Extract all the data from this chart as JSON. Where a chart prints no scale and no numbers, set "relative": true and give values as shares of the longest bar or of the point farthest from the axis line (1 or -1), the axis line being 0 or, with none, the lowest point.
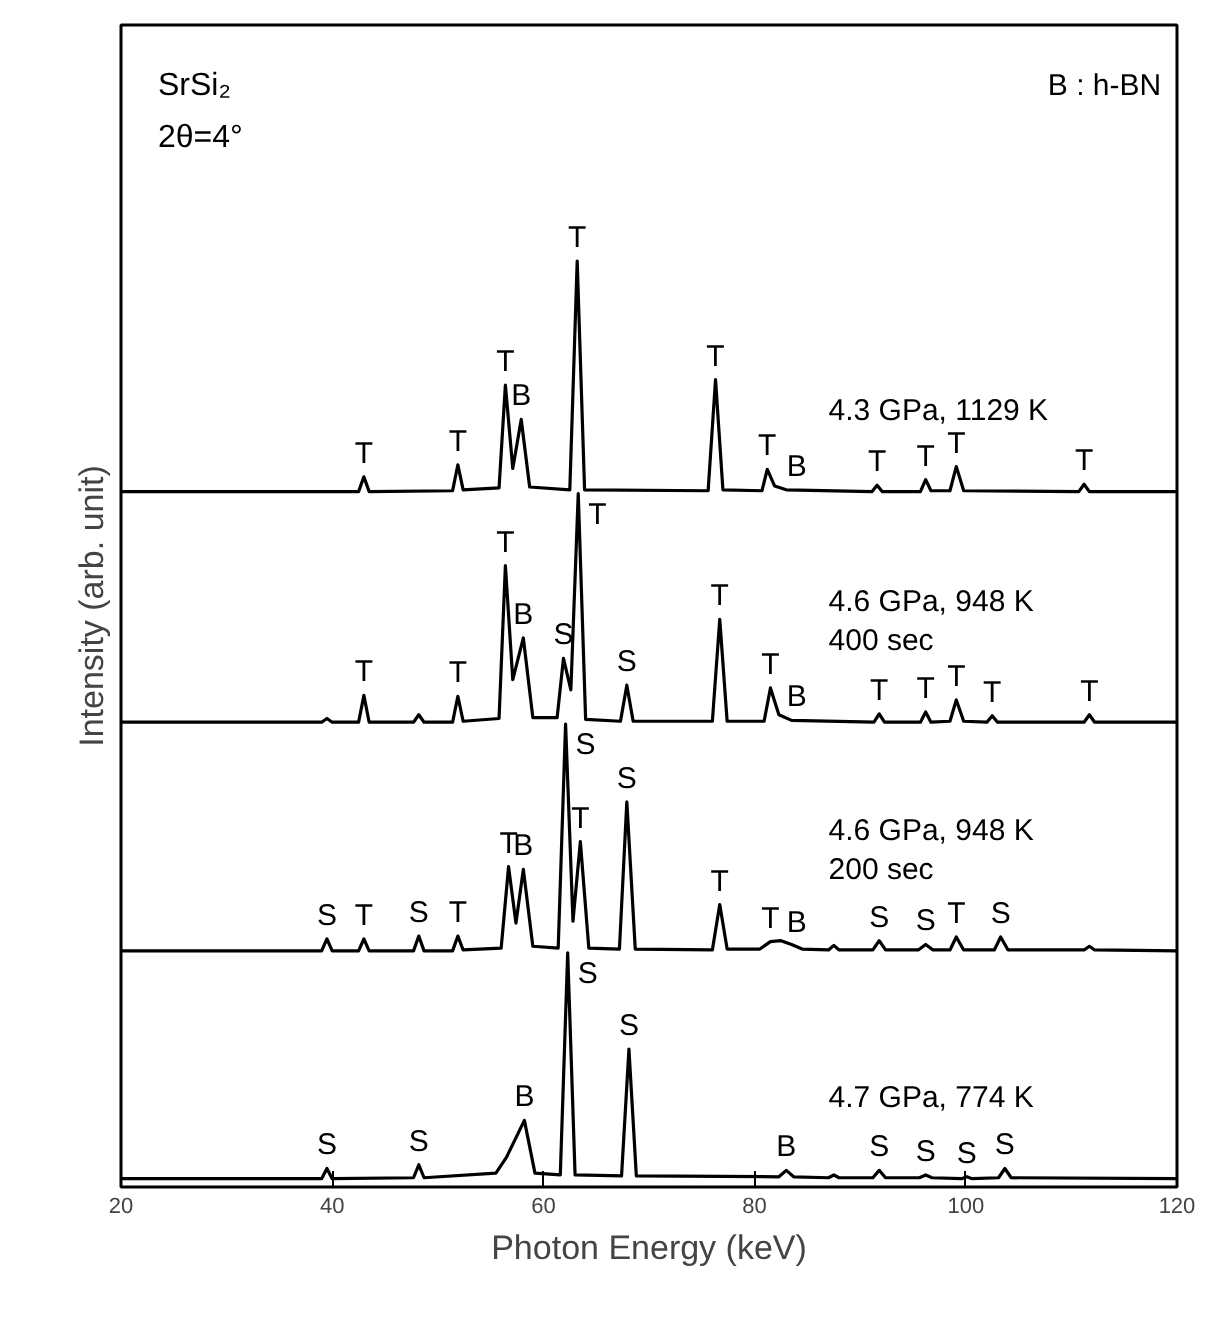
{
  "chart_data": {
    "type": "line",
    "xlabel": "Photon Energy (keV)",
    "ylabel": "Intensity (arb. unit)",
    "relative": true,
    "xlim": [
      20,
      120
    ],
    "xticks": [
      20,
      40,
      60,
      80,
      100,
      120
    ],
    "grid": false,
    "marker": "none",
    "line_style": "solid",
    "series": [
      {
        "name": "4.3 GPa, 1129 K",
        "color": "#000000",
        "x": [
          20,
          42.5,
          43.0,
          43.5,
          51.4,
          51.9,
          52.4,
          55.8,
          56.4,
          57.1,
          57.9,
          58.7,
          62.5,
          63.2,
          63.9,
          75.6,
          76.3,
          77.0,
          80.7,
          81.2,
          81.9,
          83.0,
          91.1,
          91.6,
          92.1,
          95.7,
          96.2,
          96.7,
          98.5,
          99.1,
          99.8,
          110.7,
          111.2,
          111.7,
          120
        ],
        "values": [
          0.751,
          0.751,
          0.767,
          0.751,
          0.752,
          0.78,
          0.753,
          0.755,
          0.866,
          0.776,
          0.829,
          0.756,
          0.753,
          1.0,
          0.753,
          0.752,
          0.872,
          0.753,
          0.752,
          0.775,
          0.757,
          0.753,
          0.751,
          0.758,
          0.751,
          0.751,
          0.764,
          0.752,
          0.752,
          0.778,
          0.752,
          0.751,
          0.759,
          0.751,
          0.751
        ]
      },
      {
        "name": "4.6 GPa, 948 K\n400 sec",
        "color": "#000000",
        "x": [
          20,
          39.0,
          39.5,
          40.0,
          42.5,
          43.0,
          43.5,
          47.7,
          48.2,
          48.7,
          51.4,
          51.9,
          52.4,
          55.8,
          56.4,
          57.1,
          58.1,
          59.0,
          61.3,
          61.9,
          62.6,
          63.3,
          64.0,
          67.3,
          67.9,
          68.5,
          76.0,
          76.7,
          77.4,
          80.9,
          81.5,
          82.3,
          83.5,
          91.3,
          91.8,
          92.3,
          95.7,
          96.2,
          96.7,
          98.5,
          99.1,
          99.8,
          102.0,
          102.5,
          103.0,
          111.2,
          111.7,
          112.2,
          120
        ],
        "values": [
          0.502,
          0.502,
          0.506,
          0.502,
          0.502,
          0.531,
          0.502,
          0.502,
          0.51,
          0.502,
          0.502,
          0.53,
          0.503,
          0.506,
          0.671,
          0.548,
          0.593,
          0.507,
          0.507,
          0.571,
          0.537,
          0.749,
          0.505,
          0.503,
          0.542,
          0.503,
          0.503,
          0.613,
          0.503,
          0.503,
          0.539,
          0.51,
          0.504,
          0.502,
          0.511,
          0.502,
          0.502,
          0.513,
          0.502,
          0.503,
          0.526,
          0.503,
          0.502,
          0.509,
          0.502,
          0.502,
          0.51,
          0.502,
          0.502
        ]
      },
      {
        "name": "4.6 GPa, 948 K\n200 sec",
        "color": "#000000",
        "x": [
          20,
          39.0,
          39.5,
          40.0,
          42.5,
          43.0,
          43.5,
          47.7,
          48.2,
          48.7,
          51.4,
          51.9,
          52.4,
          56.0,
          56.7,
          57.4,
          58.1,
          59.0,
          61.4,
          62.1,
          62.8,
          63.5,
          64.3,
          67.2,
          67.9,
          68.7,
          76.0,
          76.7,
          77.4,
          80.5,
          81.5,
          82.5,
          83.5,
          84.5,
          87.0,
          87.5,
          88.0,
          91.2,
          91.8,
          92.4,
          95.5,
          96.2,
          96.9,
          98.5,
          99.1,
          99.8,
          102.7,
          103.3,
          104.0,
          111.2,
          111.7,
          112.2,
          120
        ],
        "values": [
          0.255,
          0.255,
          0.268,
          0.255,
          0.255,
          0.268,
          0.255,
          0.255,
          0.271,
          0.255,
          0.255,
          0.271,
          0.256,
          0.258,
          0.346,
          0.285,
          0.343,
          0.26,
          0.258,
          0.5,
          0.287,
          0.373,
          0.258,
          0.257,
          0.416,
          0.257,
          0.256,
          0.305,
          0.257,
          0.257,
          0.265,
          0.266,
          0.262,
          0.257,
          0.256,
          0.261,
          0.256,
          0.256,
          0.266,
          0.256,
          0.256,
          0.262,
          0.256,
          0.256,
          0.27,
          0.256,
          0.256,
          0.27,
          0.256,
          0.256,
          0.26,
          0.256,
          0.255
        ]
      },
      {
        "name": "4.7 GPa, 774 K",
        "color": "#000000",
        "x": [
          20,
          39.0,
          39.5,
          40.0,
          47.7,
          48.2,
          48.7,
          55.5,
          56.5,
          58.2,
          59.2,
          61.6,
          62.3,
          63.0,
          67.4,
          68.1,
          68.8,
          82.3,
          83.0,
          83.7,
          87.0,
          87.5,
          88.0,
          91.2,
          91.8,
          92.4,
          95.6,
          96.2,
          96.8,
          99.6,
          100.1,
          100.6,
          103.1,
          103.7,
          104.3,
          120
        ],
        "values": [
          0.009,
          0.009,
          0.02,
          0.009,
          0.01,
          0.024,
          0.01,
          0.015,
          0.032,
          0.072,
          0.015,
          0.013,
          0.253,
          0.013,
          0.012,
          0.149,
          0.012,
          0.011,
          0.018,
          0.011,
          0.01,
          0.013,
          0.01,
          0.01,
          0.018,
          0.01,
          0.01,
          0.013,
          0.01,
          0.009,
          0.011,
          0.009,
          0.01,
          0.02,
          0.01,
          0.009
        ]
      }
    ],
    "annotations": [
      "SrSi₂",
      "2θ=4°",
      "B : h-BN",
      {
        "text": "T",
        "x": 43.0,
        "y": 0.767
      },
      {
        "text": "T",
        "x": 51.9,
        "y": 0.78
      },
      {
        "text": "T",
        "x": 56.4,
        "y": 0.866
      },
      {
        "text": "B",
        "x": 57.9,
        "y": 0.829
      },
      {
        "text": "T",
        "x": 63.2,
        "y": 1.0
      },
      {
        "text": "T",
        "x": 76.3,
        "y": 0.872
      },
      {
        "text": "T",
        "x": 81.2,
        "y": 0.775
      },
      {
        "text": "B",
        "x": 84.0,
        "y": 0.753
      },
      {
        "text": "T",
        "x": 91.6,
        "y": 0.758
      },
      {
        "text": "T",
        "x": 96.2,
        "y": 0.764
      },
      {
        "text": "T",
        "x": 99.1,
        "y": 0.778
      },
      {
        "text": "T",
        "x": 111.2,
        "y": 0.759
      },
      {
        "text": "T",
        "x": 43.0,
        "y": 0.531
      },
      {
        "text": "T",
        "x": 51.9,
        "y": 0.53
      },
      {
        "text": "T",
        "x": 56.4,
        "y": 0.671
      },
      {
        "text": "B",
        "x": 58.1,
        "y": 0.593
      },
      {
        "text": "S",
        "x": 61.9,
        "y": 0.571
      },
      {
        "text": "T",
        "x": 63.3,
        "y": 0.749
      },
      {
        "text": "S",
        "x": 67.9,
        "y": 0.542
      },
      {
        "text": "T",
        "x": 76.7,
        "y": 0.613
      },
      {
        "text": "T",
        "x": 81.5,
        "y": 0.539
      },
      {
        "text": "B",
        "x": 84.0,
        "y": 0.504
      },
      {
        "text": "T",
        "x": 91.8,
        "y": 0.511
      },
      {
        "text": "T",
        "x": 96.2,
        "y": 0.513
      },
      {
        "text": "T",
        "x": 99.1,
        "y": 0.526
      },
      {
        "text": "T",
        "x": 102.5,
        "y": 0.509
      },
      {
        "text": "T",
        "x": 111.7,
        "y": 0.51
      },
      {
        "text": "S",
        "x": 39.5,
        "y": 0.268
      },
      {
        "text": "T",
        "x": 43.0,
        "y": 0.268
      },
      {
        "text": "S",
        "x": 48.2,
        "y": 0.271
      },
      {
        "text": "T",
        "x": 51.9,
        "y": 0.271
      },
      {
        "text": "T",
        "x": 56.7,
        "y": 0.346
      },
      {
        "text": "B",
        "x": 58.1,
        "y": 0.343
      },
      {
        "text": "S",
        "x": 62.1,
        "y": 0.5
      },
      {
        "text": "T",
        "x": 63.5,
        "y": 0.373
      },
      {
        "text": "S",
        "x": 67.9,
        "y": 0.416
      },
      {
        "text": "T",
        "x": 76.7,
        "y": 0.305
      },
      {
        "text": "T",
        "x": 81.5,
        "y": 0.265
      },
      {
        "text": "B",
        "x": 84.0,
        "y": 0.26
      },
      {
        "text": "S",
        "x": 91.8,
        "y": 0.266
      },
      {
        "text": "S",
        "x": 96.2,
        "y": 0.262
      },
      {
        "text": "T",
        "x": 99.1,
        "y": 0.27
      },
      {
        "text": "S",
        "x": 103.3,
        "y": 0.27
      },
      {
        "text": "S",
        "x": 39.5,
        "y": 0.02
      },
      {
        "text": "S",
        "x": 48.2,
        "y": 0.024
      },
      {
        "text": "B",
        "x": 58.2,
        "y": 0.072
      },
      {
        "text": "S",
        "x": 62.3,
        "y": 0.253
      },
      {
        "text": "S",
        "x": 68.1,
        "y": 0.149
      },
      {
        "text": "B",
        "x": 83.0,
        "y": 0.018
      },
      {
        "text": "S",
        "x": 91.8,
        "y": 0.018
      },
      {
        "text": "S",
        "x": 96.2,
        "y": 0.013
      },
      {
        "text": "S",
        "x": 100.1,
        "y": 0.011
      },
      {
        "text": "S",
        "x": 103.7,
        "y": 0.02
      }
    ]
  }
}
